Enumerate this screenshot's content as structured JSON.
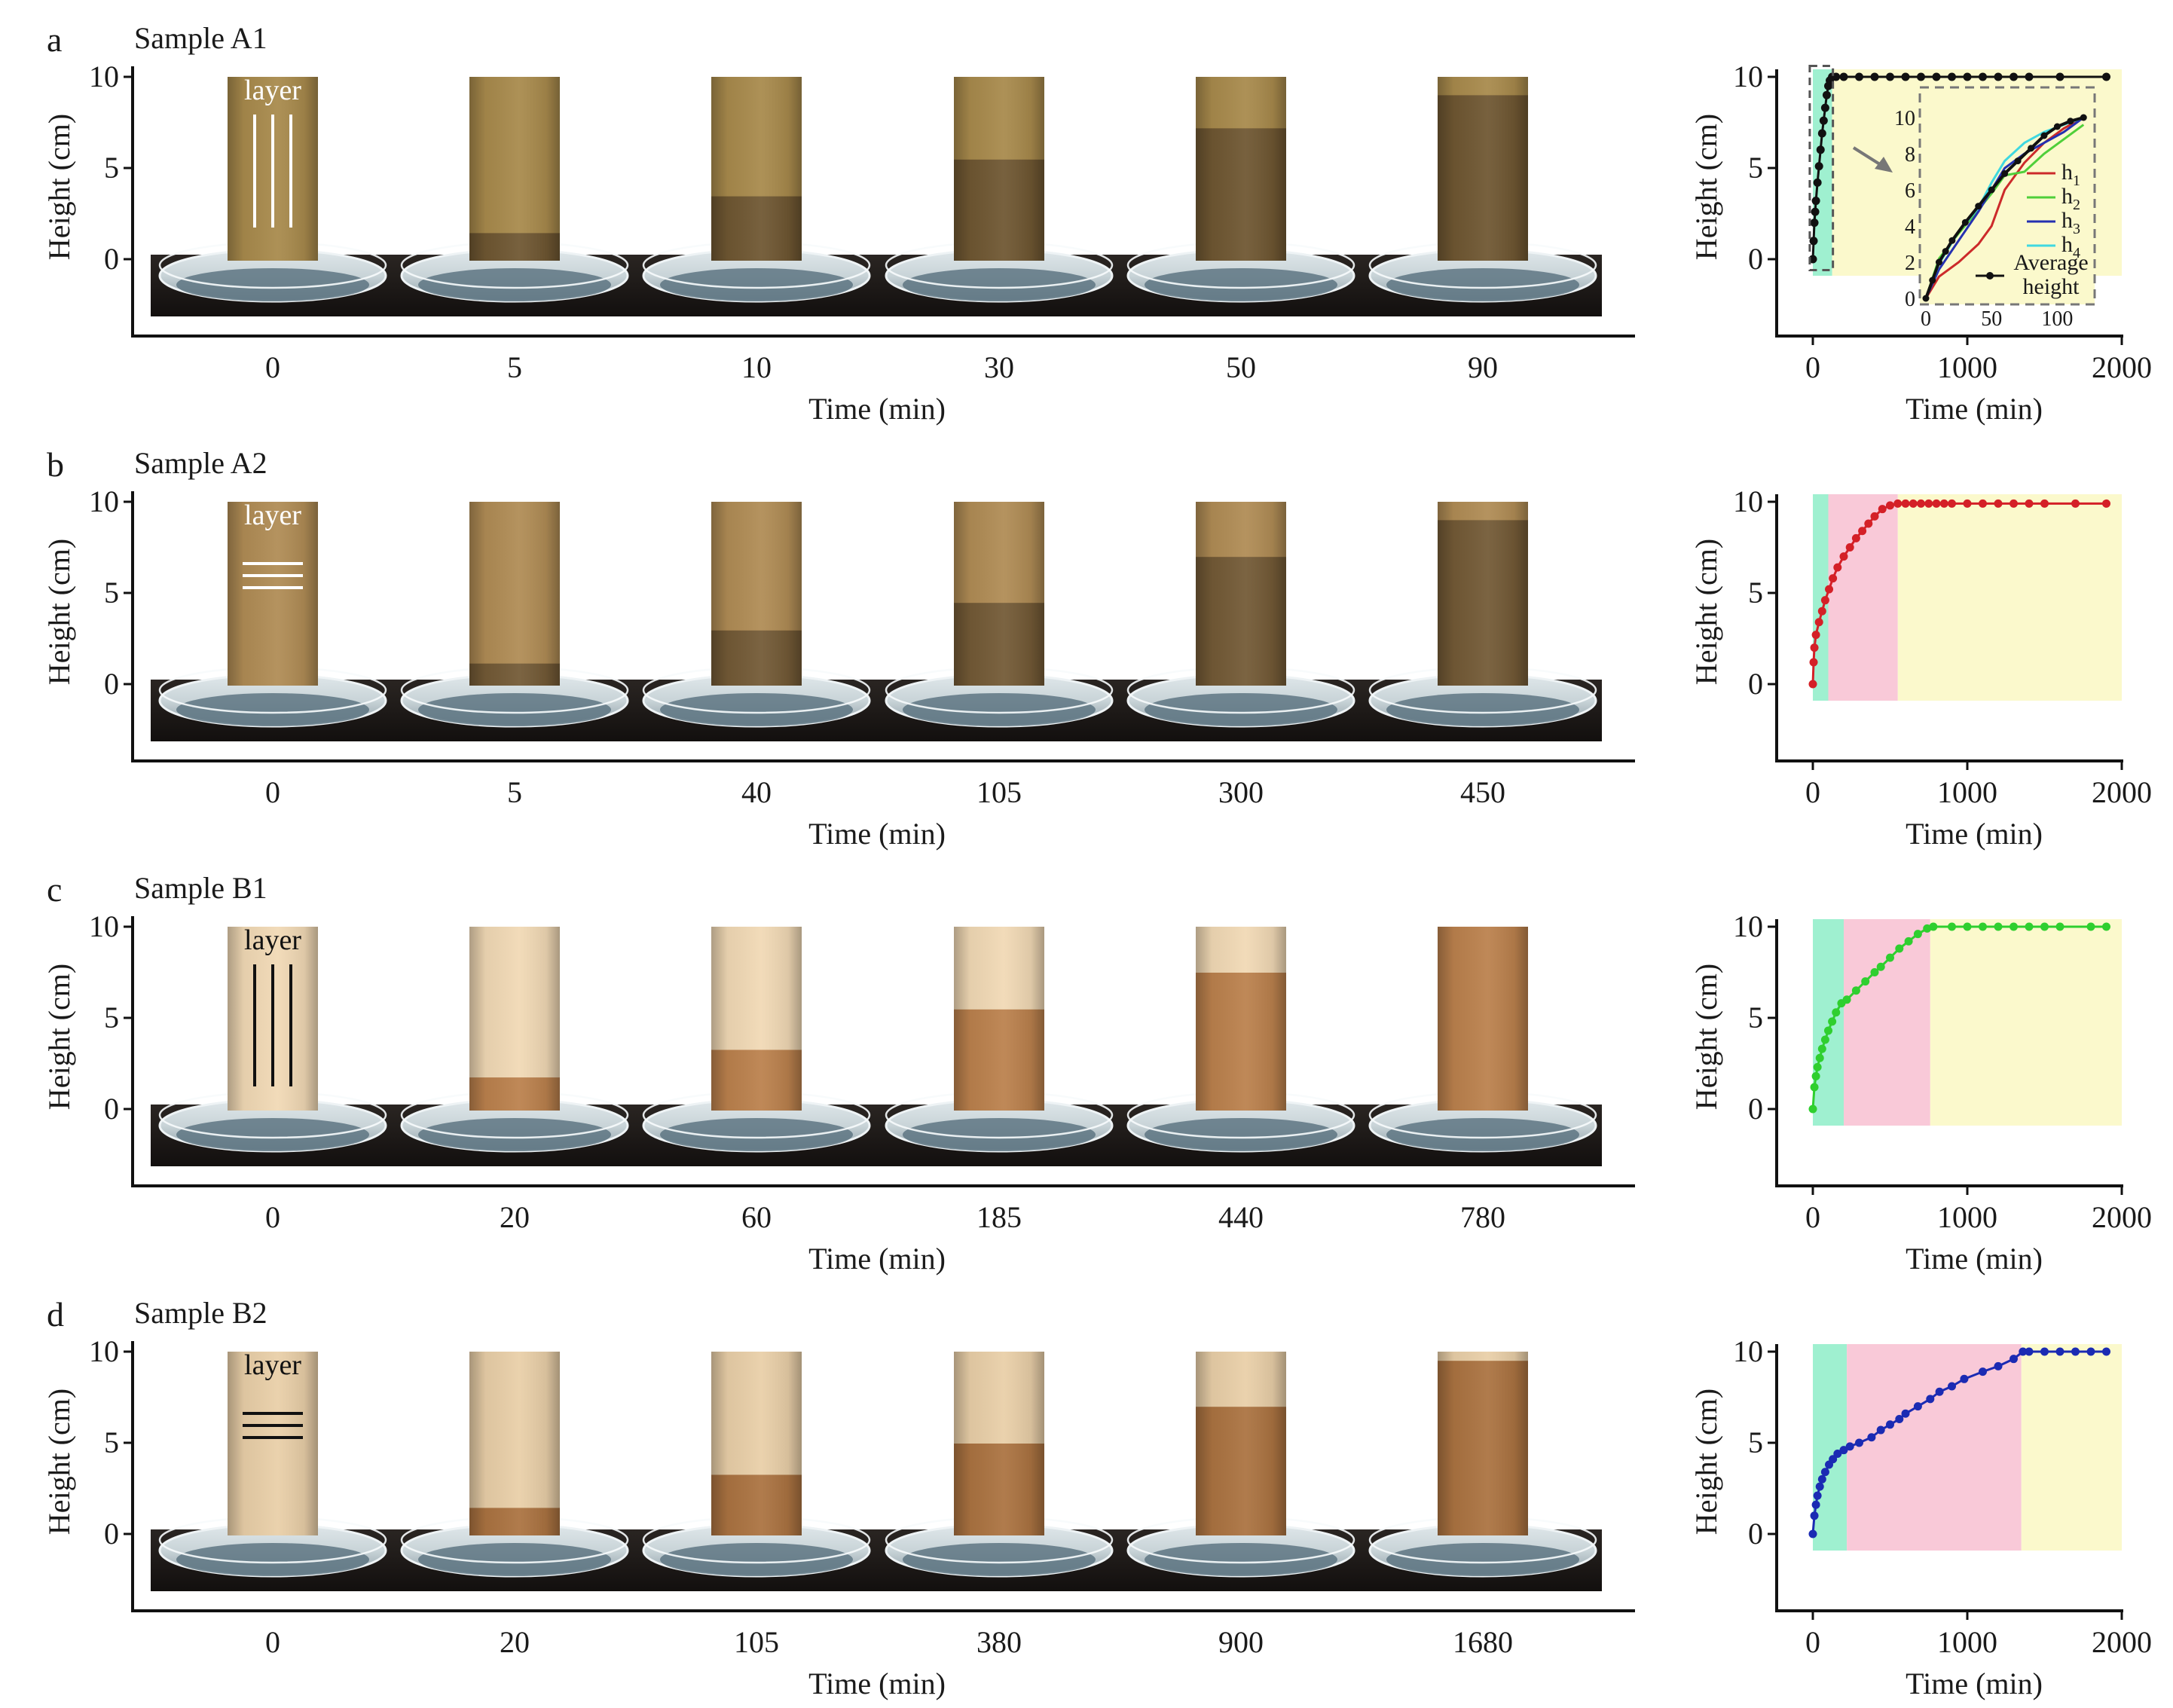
{
  "figure": {
    "panels": [
      {
        "letter": "a",
        "sample_label": "Sample A1",
        "layer_label": "layer",
        "layer_orientation": "vertical",
        "layer_line_color": "#ffffff",
        "ylabel": "Height (cm)",
        "xlabel": "Time (min)",
        "yticks": [
          "0",
          "5",
          "10"
        ],
        "photo_times": [
          "0",
          "5",
          "10",
          "30",
          "50",
          "90"
        ],
        "photo_wet_fraction": [
          0.0,
          0.15,
          0.35,
          0.55,
          0.72,
          0.9
        ],
        "photo_dry_color": "#a88a4c",
        "photo_wet_color": "#6a5330",
        "series_color": "#111111",
        "phase_bounds": [
          0,
          125,
          125,
          125
        ],
        "phase_colors": [
          "#9ff0d0",
          "#f9c9d8",
          "#fbf9cc"
        ]
      },
      {
        "letter": "b",
        "sample_label": "Sample A2",
        "layer_label": "layer",
        "layer_orientation": "horizontal",
        "layer_line_color": "#ffffff",
        "ylabel": "Height (cm)",
        "xlabel": "Time (min)",
        "yticks": [
          "0",
          "5",
          "10"
        ],
        "photo_times": [
          "0",
          "5",
          "40",
          "105",
          "300",
          "450"
        ],
        "photo_wet_fraction": [
          0.0,
          0.12,
          0.3,
          0.45,
          0.7,
          0.9
        ],
        "photo_dry_color": "#b08c55",
        "photo_wet_color": "#6e5634",
        "series_color": "#d42027",
        "phase_bounds": [
          0,
          100,
          550,
          2000
        ],
        "phase_colors": [
          "#9ff0d0",
          "#f9c9d8",
          "#fbf9cc"
        ]
      },
      {
        "letter": "c",
        "sample_label": "Sample B1",
        "layer_label": "layer",
        "layer_orientation": "vertical",
        "layer_line_color": "#111111",
        "ylabel": "Height (cm)",
        "xlabel": "Time (min)",
        "yticks": [
          "0",
          "5",
          "10"
        ],
        "photo_times": [
          "0",
          "20",
          "60",
          "185",
          "440",
          "780"
        ],
        "photo_wet_fraction": [
          0.0,
          0.18,
          0.33,
          0.55,
          0.75,
          1.0
        ],
        "photo_dry_color": "#f1d9b5",
        "photo_wet_color": "#b67a44",
        "series_color": "#2fcf2f",
        "phase_bounds": [
          0,
          200,
          760,
          2000
        ],
        "phase_colors": [
          "#9ff0d0",
          "#f9c9d8",
          "#fbf9cc"
        ]
      },
      {
        "letter": "d",
        "sample_label": "Sample B2",
        "layer_label": "layer",
        "layer_orientation": "horizontal",
        "layer_line_color": "#111111",
        "ylabel": "Height (cm)",
        "xlabel": "Time (min)",
        "yticks": [
          "0",
          "5",
          "10"
        ],
        "photo_times": [
          "0",
          "20",
          "105",
          "380",
          "900",
          "1680"
        ],
        "photo_wet_fraction": [
          0.0,
          0.15,
          0.33,
          0.5,
          0.7,
          0.95
        ],
        "photo_dry_color": "#e9cfa8",
        "photo_wet_color": "#a56b38",
        "series_color": "#1b2bb3",
        "phase_bounds": [
          0,
          220,
          1350,
          2000
        ],
        "phase_colors": [
          "#9ff0d0",
          "#f9c9d8",
          "#fbf9cc"
        ]
      }
    ],
    "inset": {
      "xticks": [
        "0",
        "50",
        "100"
      ],
      "yticks": [
        "0",
        "2",
        "4",
        "6",
        "8",
        "10"
      ],
      "legend": [
        {
          "label": "h",
          "sub": "1",
          "color": "#cc2a2a"
        },
        {
          "label": "h",
          "sub": "2",
          "color": "#4fcf3a"
        },
        {
          "label": "h",
          "sub": "3",
          "color": "#2430b0"
        },
        {
          "label": "h",
          "sub": "4",
          "color": "#3fd8e0"
        }
      ],
      "avg_label_line1": "Average",
      "avg_label_line2": "height"
    }
  },
  "chart_data": [
    {
      "type": "line",
      "panel": "a",
      "xlabel": "Time (min)",
      "ylabel": "Height (cm)",
      "xlim": [
        -50,
        2000
      ],
      "ylim": [
        -4,
        10.5
      ],
      "xticks": [
        0,
        1000,
        2000
      ],
      "yticks": [
        0,
        5,
        10
      ],
      "series": [
        {
          "x": [
            0,
            5,
            10,
            15,
            20,
            30,
            40,
            50,
            60,
            70,
            80,
            90,
            100,
            110,
            125,
            150,
            200,
            300,
            400,
            500,
            600,
            700,
            800,
            900,
            1000,
            1100,
            1200,
            1300,
            1400,
            1600,
            1900
          ],
          "y": [
            0,
            1,
            2,
            2.6,
            3.2,
            4.2,
            5.1,
            6.0,
            6.9,
            7.6,
            8.3,
            9.0,
            9.5,
            9.8,
            10,
            10,
            10,
            10,
            10,
            10,
            10,
            10,
            10,
            10,
            10,
            10,
            10,
            10,
            10,
            10,
            10
          ]
        }
      ]
    },
    {
      "type": "line",
      "panel": "a-inset",
      "xlim": [
        0,
        125
      ],
      "ylim": [
        0,
        10.5
      ],
      "xticks": [
        0,
        50,
        100
      ],
      "yticks": [
        0,
        2,
        4,
        6,
        8,
        10
      ],
      "series": [
        {
          "name": "h1",
          "x": [
            0,
            10,
            25,
            40,
            50,
            60,
            75,
            90,
            105,
            120
          ],
          "y": [
            0,
            1.2,
            2.0,
            3.0,
            4.0,
            6.0,
            7.5,
            8.6,
            9.4,
            10.0
          ]
        },
        {
          "name": "h2",
          "x": [
            0,
            10,
            25,
            40,
            50,
            60,
            75,
            90,
            105,
            120
          ],
          "y": [
            0,
            2.2,
            3.6,
            4.9,
            5.8,
            6.8,
            7.0,
            8.0,
            8.8,
            9.6
          ]
        },
        {
          "name": "h3",
          "x": [
            0,
            10,
            25,
            40,
            50,
            60,
            75,
            90,
            105,
            120
          ],
          "y": [
            0,
            1.6,
            3.2,
            4.8,
            6.0,
            7.2,
            8.0,
            8.6,
            9.2,
            10.0
          ]
        },
        {
          "name": "h4",
          "x": [
            0,
            10,
            25,
            40,
            50,
            60,
            75,
            90,
            105,
            120
          ],
          "y": [
            0,
            1.9,
            3.7,
            5.0,
            6.4,
            7.6,
            8.6,
            9.2,
            9.6,
            10.0
          ]
        },
        {
          "name": "Average height",
          "x": [
            0,
            5,
            10,
            15,
            20,
            30,
            40,
            50,
            60,
            70,
            80,
            90,
            100,
            110,
            120
          ],
          "y": [
            0,
            1.0,
            2.0,
            2.6,
            3.2,
            4.2,
            5.1,
            6.0,
            6.9,
            7.6,
            8.3,
            9.0,
            9.5,
            9.8,
            10.0
          ]
        }
      ]
    },
    {
      "type": "line",
      "panel": "b",
      "xlabel": "Time (min)",
      "ylabel": "Height (cm)",
      "xlim": [
        -50,
        2000
      ],
      "ylim": [
        -4,
        10.5
      ],
      "xticks": [
        0,
        1000,
        2000
      ],
      "yticks": [
        0,
        5,
        10
      ],
      "series": [
        {
          "x": [
            0,
            5,
            10,
            20,
            40,
            60,
            80,
            105,
            130,
            160,
            200,
            240,
            280,
            320,
            360,
            400,
            450,
            500,
            550,
            600,
            650,
            700,
            750,
            800,
            850,
            900,
            1000,
            1100,
            1200,
            1300,
            1400,
            1500,
            1700,
            1900
          ],
          "y": [
            0,
            1.2,
            2.0,
            2.7,
            3.4,
            4.0,
            4.6,
            5.2,
            5.8,
            6.4,
            7.0,
            7.5,
            8.0,
            8.4,
            8.8,
            9.2,
            9.6,
            9.8,
            9.9,
            9.9,
            9.9,
            9.9,
            9.9,
            9.9,
            9.9,
            9.9,
            9.9,
            9.9,
            9.9,
            9.9,
            9.9,
            9.9,
            9.9,
            9.9
          ]
        }
      ]
    },
    {
      "type": "line",
      "panel": "c",
      "xlabel": "Time (min)",
      "ylabel": "Height (cm)",
      "xlim": [
        -50,
        2000
      ],
      "ylim": [
        -4,
        10.5
      ],
      "xticks": [
        0,
        1000,
        2000
      ],
      "yticks": [
        0,
        5,
        10
      ],
      "series": [
        {
          "x": [
            0,
            10,
            20,
            30,
            45,
            60,
            80,
            100,
            125,
            150,
            185,
            220,
            280,
            340,
            400,
            440,
            500,
            560,
            620,
            680,
            740,
            780,
            900,
            1000,
            1100,
            1200,
            1300,
            1400,
            1500,
            1600,
            1800,
            1900
          ],
          "y": [
            0,
            1.2,
            1.8,
            2.3,
            2.8,
            3.3,
            3.8,
            4.3,
            4.8,
            5.3,
            5.8,
            6.0,
            6.5,
            7.0,
            7.5,
            7.8,
            8.3,
            8.8,
            9.2,
            9.6,
            9.9,
            10.0,
            10.0,
            10.0,
            10.0,
            10.0,
            10.0,
            10.0,
            10.0,
            10.0,
            10.0,
            10.0
          ]
        }
      ]
    },
    {
      "type": "line",
      "panel": "d",
      "xlabel": "Time (min)",
      "ylabel": "Height (cm)",
      "xlim": [
        -50,
        2000
      ],
      "ylim": [
        -4,
        10.5
      ],
      "xticks": [
        0,
        1000,
        2000
      ],
      "yticks": [
        0,
        5,
        10
      ],
      "series": [
        {
          "x": [
            0,
            10,
            20,
            30,
            45,
            60,
            80,
            105,
            130,
            160,
            200,
            240,
            300,
            380,
            440,
            500,
            560,
            600,
            680,
            760,
            820,
            900,
            980,
            1100,
            1200,
            1300,
            1360,
            1400,
            1500,
            1600,
            1700,
            1800,
            1900
          ],
          "y": [
            0,
            1.0,
            1.6,
            2.1,
            2.6,
            3.0,
            3.4,
            3.8,
            4.1,
            4.4,
            4.6,
            4.8,
            5.0,
            5.3,
            5.7,
            6.0,
            6.3,
            6.6,
            7.0,
            7.4,
            7.8,
            8.1,
            8.5,
            8.9,
            9.2,
            9.6,
            10.0,
            10.0,
            10.0,
            10.0,
            10.0,
            10.0,
            10.0
          ]
        }
      ]
    }
  ]
}
